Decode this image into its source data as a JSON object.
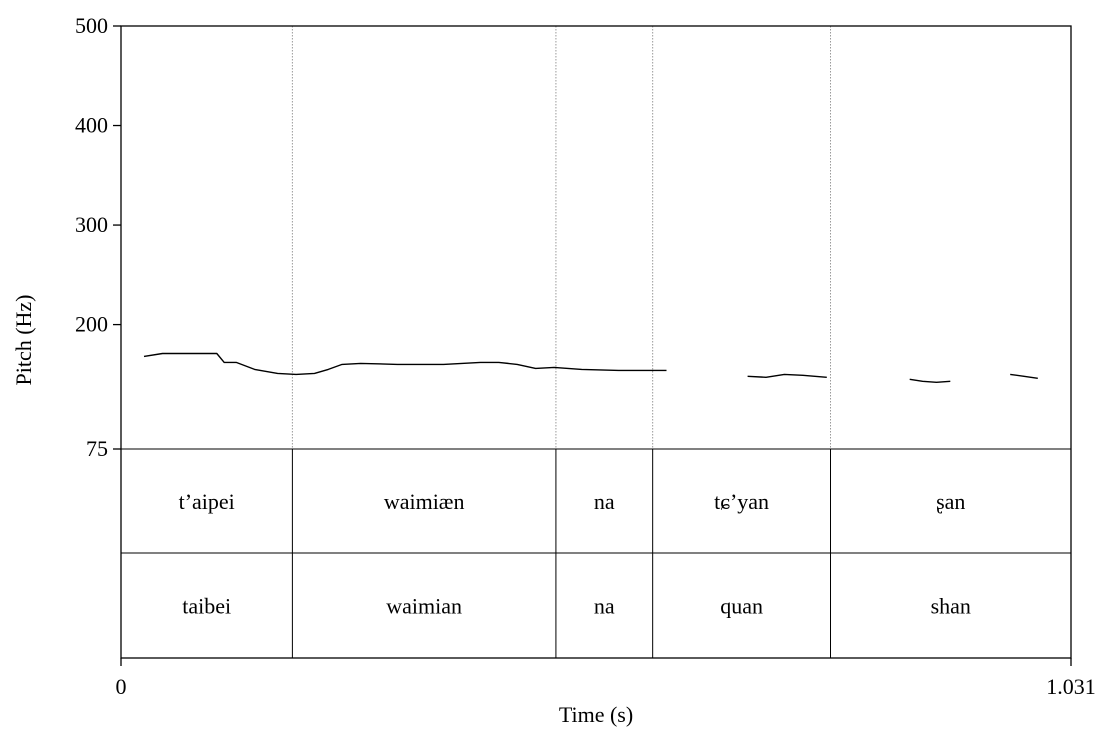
{
  "chart_data": {
    "type": "line",
    "xlabel": "Time (s)",
    "ylabel": "Pitch (Hz)",
    "xlim": [
      0,
      1.031
    ],
    "ylim": [
      75,
      500
    ],
    "x_tick_labels": [
      "0",
      "1.031"
    ],
    "y_ticks": [
      {
        "value": 75,
        "label": "75"
      },
      {
        "value": 200,
        "label": "200"
      },
      {
        "value": 300,
        "label": "300"
      },
      {
        "value": 400,
        "label": "400"
      },
      {
        "value": 500,
        "label": "500"
      }
    ],
    "boundaries": [
      0.186,
      0.472,
      0.577,
      0.77
    ],
    "series": [
      {
        "segments": [
          [
            [
              0.025,
              168
            ],
            [
              0.045,
              171
            ],
            [
              0.075,
              171
            ],
            [
              0.09,
              171
            ],
            [
              0.104,
              171
            ],
            [
              0.112,
              162
            ],
            [
              0.125,
              162
            ],
            [
              0.145,
              155
            ],
            [
              0.17,
              151
            ],
            [
              0.19,
              150
            ],
            [
              0.21,
              151
            ],
            [
              0.225,
              155
            ],
            [
              0.24,
              160
            ],
            [
              0.26,
              161
            ],
            [
              0.3,
              160
            ],
            [
              0.35,
              160
            ],
            [
              0.39,
              162
            ],
            [
              0.41,
              162
            ],
            [
              0.43,
              160
            ],
            [
              0.45,
              156
            ],
            [
              0.47,
              157
            ],
            [
              0.5,
              155
            ],
            [
              0.54,
              154
            ],
            [
              0.592,
              154
            ]
          ],
          [
            [
              0.68,
              148
            ],
            [
              0.7,
              147
            ],
            [
              0.72,
              150
            ],
            [
              0.74,
              149
            ],
            [
              0.766,
              147
            ]
          ],
          [
            [
              0.856,
              145
            ],
            [
              0.87,
              143
            ],
            [
              0.885,
              142
            ],
            [
              0.9,
              143
            ]
          ],
          [
            [
              0.965,
              150
            ],
            [
              0.98,
              148
            ],
            [
              0.995,
              146
            ]
          ]
        ]
      }
    ],
    "tiers": [
      {
        "labels": [
          {
            "text": "t’aipei",
            "start": 0,
            "end": 0.186
          },
          {
            "text": "waimiæn",
            "start": 0.186,
            "end": 0.472
          },
          {
            "text": "na",
            "start": 0.472,
            "end": 0.577
          },
          {
            "text": "tɕ’yan",
            "start": 0.577,
            "end": 0.77
          },
          {
            "text": "ʂan",
            "start": 0.77,
            "end": 1.031
          }
        ]
      },
      {
        "labels": [
          {
            "text": "taibei",
            "start": 0,
            "end": 0.186
          },
          {
            "text": "waimian",
            "start": 0.186,
            "end": 0.472
          },
          {
            "text": "na",
            "start": 0.472,
            "end": 0.577
          },
          {
            "text": "quan",
            "start": 0.577,
            "end": 0.77
          },
          {
            "text": "shan",
            "start": 0.77,
            "end": 1.031
          }
        ]
      }
    ],
    "colors": {
      "line": "#000000",
      "boundary": "#9a9a9a",
      "frame": "#000000"
    }
  }
}
